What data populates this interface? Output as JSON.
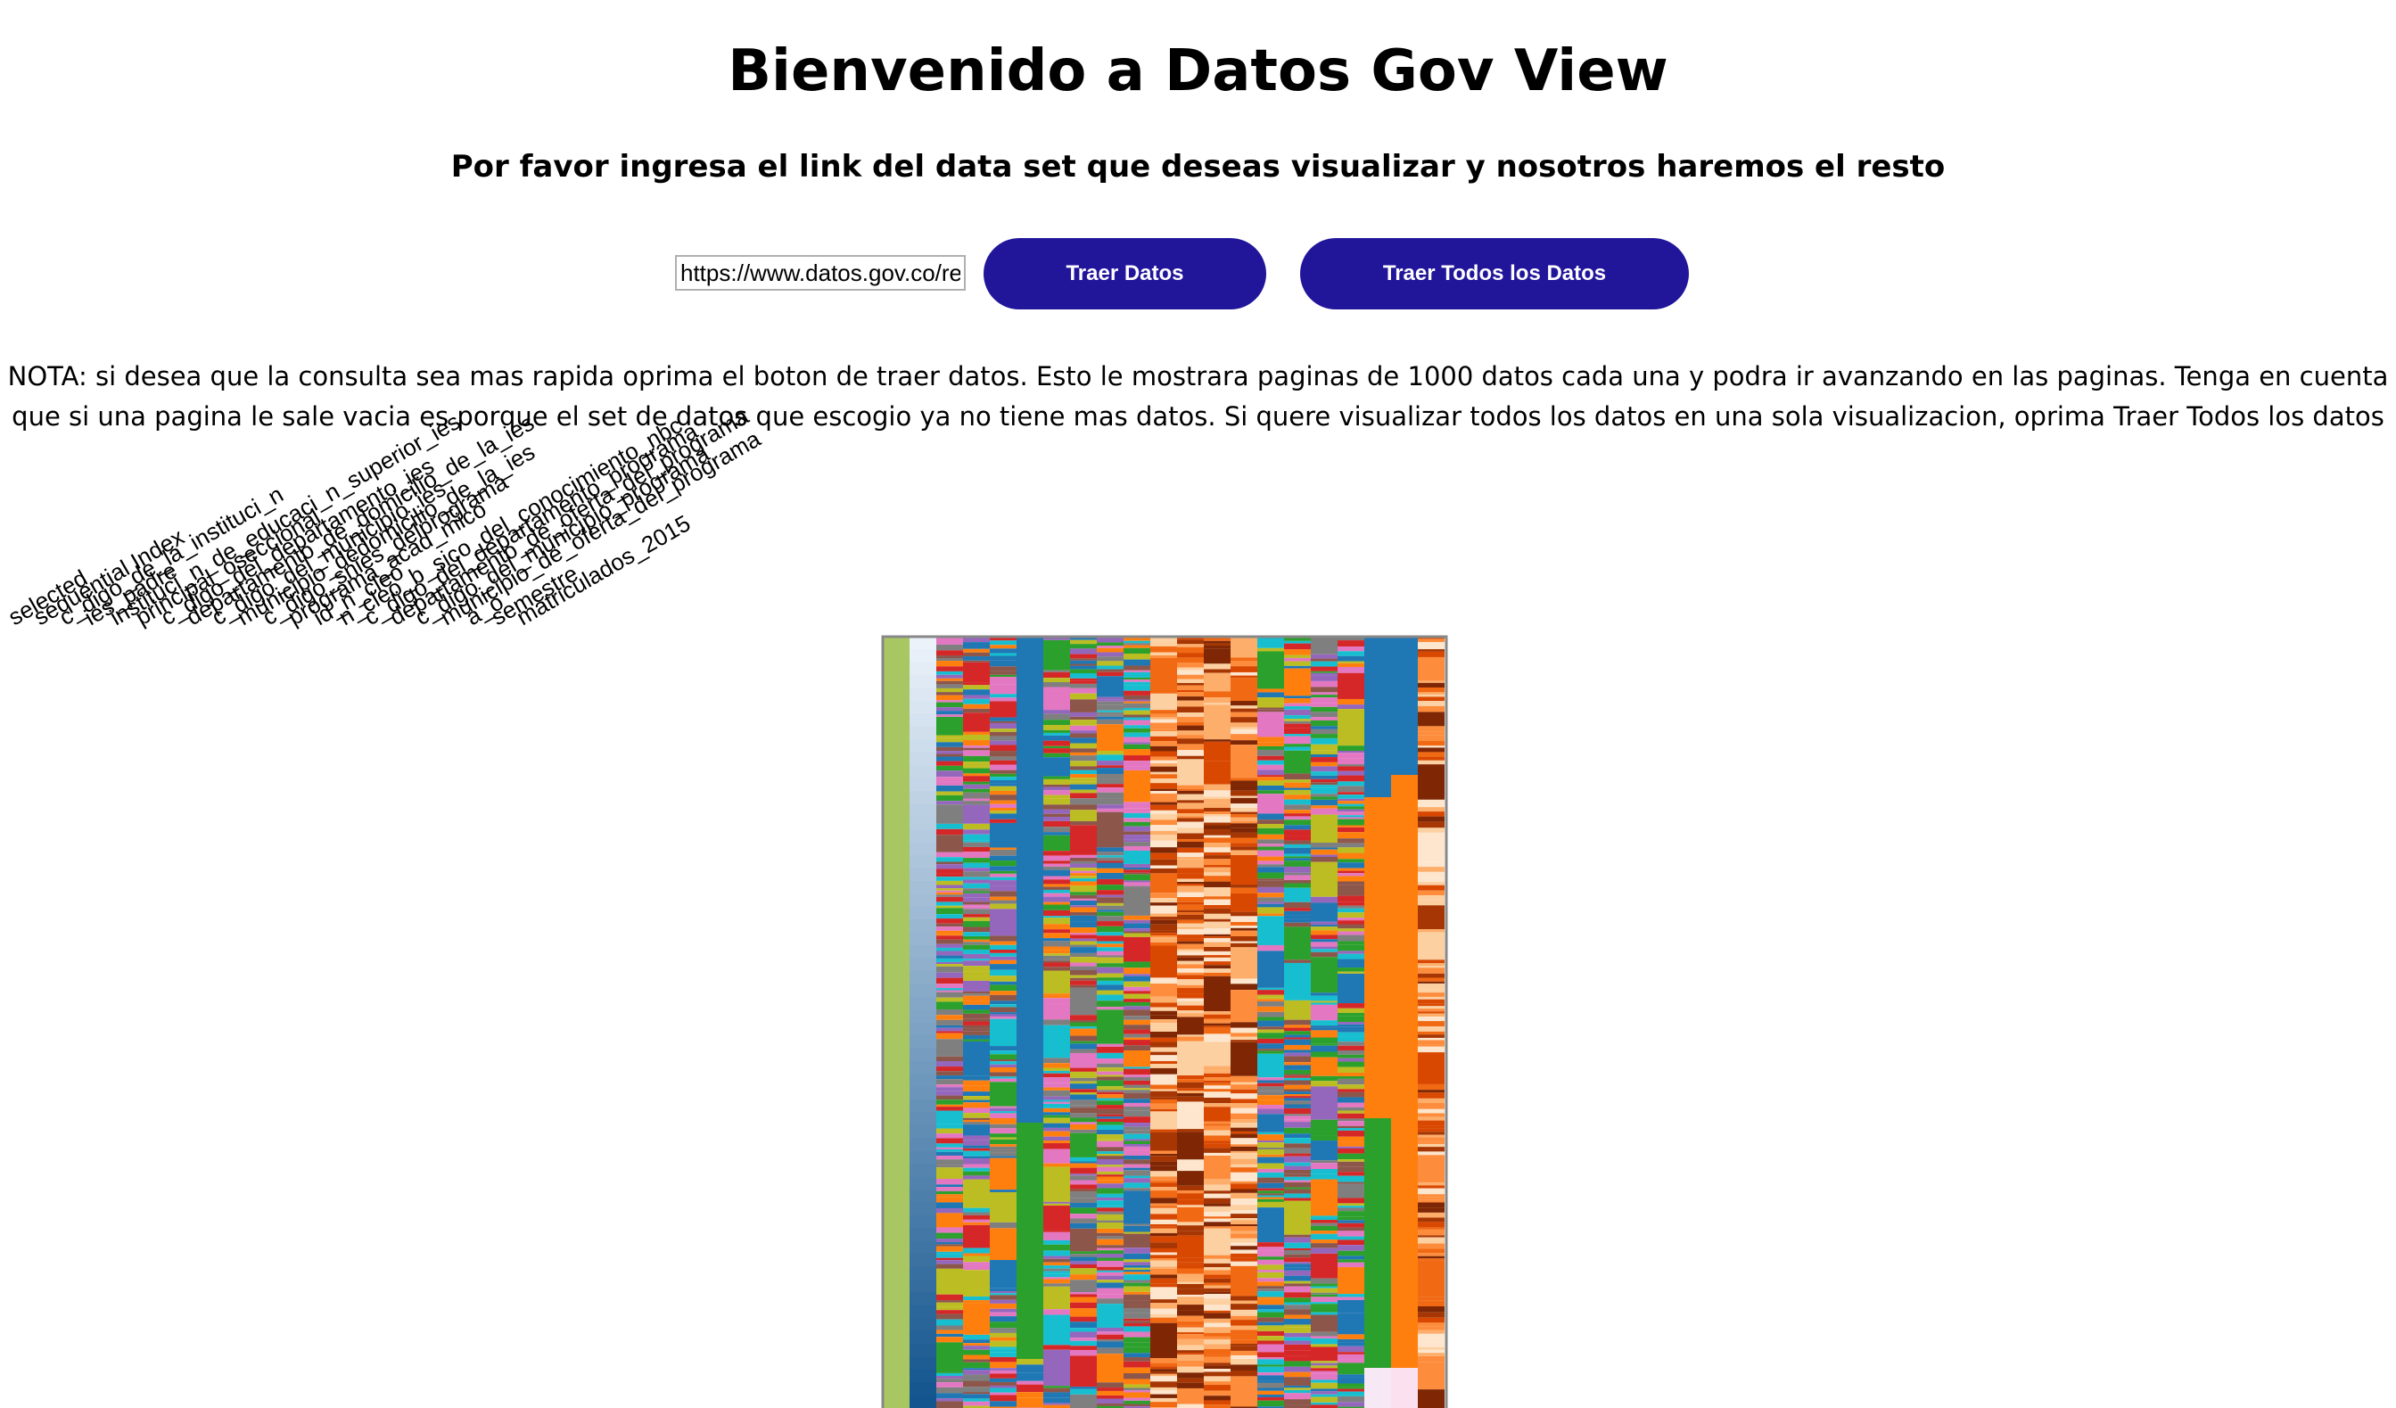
{
  "header": {
    "title": "Bienvenido a Datos Gov View",
    "subtitle": "Por favor ingresa el link del data set que deseas visualizar y nosotros haremos el resto"
  },
  "form": {
    "url_value": "https://www.datos.gov.co/re",
    "traer_label": "Traer Datos",
    "traer_todos_label": "Traer Todos los Datos"
  },
  "note": "NOTA: si desea que la consulta sea mas rapida oprima el boton de traer datos. Esto le mostrara paginas de 1000 datos cada una y podra ir avanzando en las paginas. Tenga en cuenta que si una pagina le sale vacia es porque el set de datos que escogio ya no tiene mas datos. Si quere visualizar todos los datos en una sola visualizacion, oprima Traer Todos los datos",
  "colors": {
    "button": "#21159a"
  },
  "chart_data": {
    "type": "heatmap",
    "columns": [
      "selected",
      "sequential Index",
      "c_digo_de_la_instituci_n",
      "ies_padre",
      "instituci_n_de_educaci_n_superior_ies",
      "principal_oseccional",
      "c_digo_del_departamento_ies",
      "departamento_de_domicilio_de_la_ies",
      "c_digo_del_municipio_ies",
      "municipio_dedomicilio_de_la_ies",
      "c_digo_snies_delprograma",
      "programa_acad_mico",
      "id_n_cleo",
      "n_cleo_b_sico_del_conocimiento_nbc",
      "c_digo_del_departamento_programa",
      "departamento_de_oferta_del_programa",
      "c_digo_del_municipio_programa",
      "municipio_de_oferta_del_programa",
      "a_o",
      "semestre",
      "matriculados_2015"
    ]
  }
}
